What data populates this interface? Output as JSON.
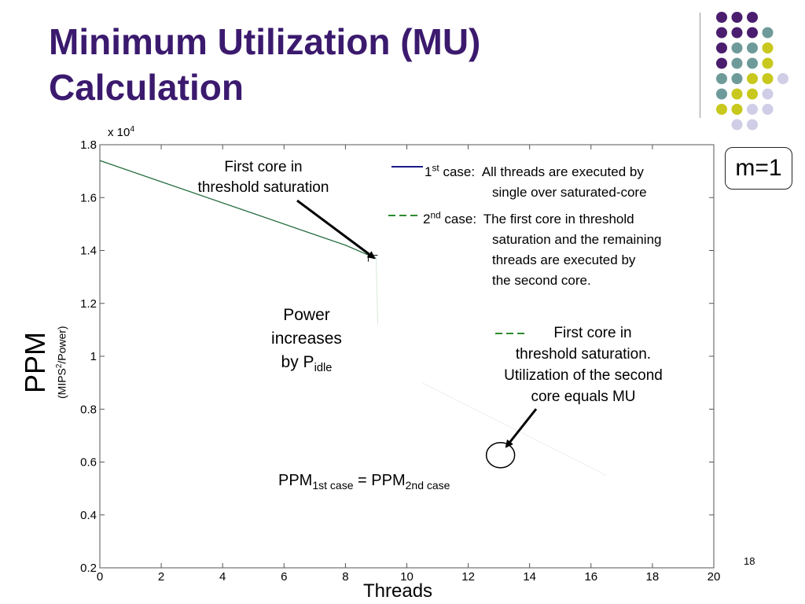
{
  "slide": {
    "title_line1": "Minimum Utilization (MU)",
    "title_line2": "Calculation",
    "m_label": "m=1",
    "page_number": "18"
  },
  "colors": {
    "title": "#3b1a6e",
    "dot_purple": "#4b1d6e",
    "dot_teal": "#6f9a9a",
    "dot_yellow": "#c8c81e",
    "dot_lavender": "#d0cde6",
    "series1": "#1a1a8c",
    "series2": "#2e8b2e"
  },
  "axes": {
    "y_exponent_prefix": "x 10",
    "y_exponent_power": "4",
    "y_label_big": "PPM",
    "y_label_small_pre": "(MIPS",
    "y_label_small_sup": "2",
    "y_label_small_post": "/Power)",
    "x_label": "Threads"
  },
  "annotations": {
    "first_core_line1": "First core in",
    "first_core_line2": "threshold saturation",
    "power_line1": "Power",
    "power_line2": "increases",
    "power_line3_pre": "by P",
    "power_line3_sub": "idle",
    "legend1_num": "1",
    "legend1_sup": "st",
    "legend1_case": " case:",
    "legend1_text1": "All threads are executed by",
    "legend1_text2": "single over saturated-core",
    "legend2_num": "2",
    "legend2_sup": "nd",
    "legend2_case": " case:",
    "legend2_text1": "The first core in threshold",
    "legend2_text2": "saturation and the remaining",
    "legend2_text3": "threads  are executed by",
    "legend2_text4": "the second core.",
    "legend3_line1": "First core in",
    "legend3_line2": "threshold  saturation.",
    "legend3_line3": "Utilization of the second",
    "legend3_line4": "core equals MU",
    "eq_left": "PPM",
    "eq_left_sub": "1st case",
    "eq_mid": " = PPM",
    "eq_right_sub": "2nd case"
  },
  "chart_data": {
    "type": "line",
    "x_ticks": [
      "0",
      "2",
      "4",
      "6",
      "8",
      "10",
      "12",
      "14",
      "16",
      "18",
      "20"
    ],
    "y_ticks": [
      "0.2",
      "0.4",
      "0.6",
      "0.8",
      "1",
      "1.2",
      "1.4",
      "1.6",
      "1.8"
    ],
    "xlim": [
      0,
      20
    ],
    "ylim": [
      0.2,
      1.8
    ],
    "y_scale_factor": "x 10^4",
    "xlabel": "Threads",
    "ylabel": "PPM (MIPS2/Power)",
    "series": [
      {
        "name": "1st case",
        "x": [
          0,
          1,
          2,
          3,
          4,
          5,
          6,
          7,
          8,
          9
        ],
        "y": [
          1.74,
          1.7,
          1.66,
          1.62,
          1.58,
          1.54,
          1.5,
          1.46,
          1.42,
          1.37
        ]
      }
    ],
    "marked_point": {
      "x": 13,
      "y": 0.62
    }
  }
}
